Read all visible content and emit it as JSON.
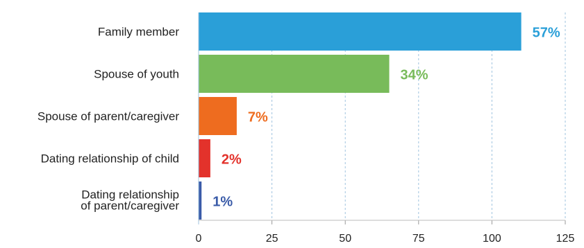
{
  "chart_data": {
    "type": "bar",
    "orientation": "horizontal",
    "categories": [
      [
        "Family member"
      ],
      [
        "Spouse of  youth"
      ],
      [
        "Spouse of parent/caregiver"
      ],
      [
        "Dating relationship of child"
      ],
      [
        "Dating relationship",
        "of parent/caregiver"
      ]
    ],
    "values": [
      110,
      65,
      13,
      4,
      1
    ],
    "data_labels": [
      "57%",
      "34%",
      "7%",
      "2%",
      "1%"
    ],
    "colors": [
      "#2a9fd8",
      "#78bb5a",
      "#ee6c1f",
      "#e3322b",
      "#3a5ba8"
    ],
    "xlim": [
      0,
      125
    ],
    "xticks": [
      0,
      25,
      50,
      75,
      100,
      125
    ],
    "grid": true,
    "title": "",
    "xlabel": "",
    "ylabel": ""
  }
}
